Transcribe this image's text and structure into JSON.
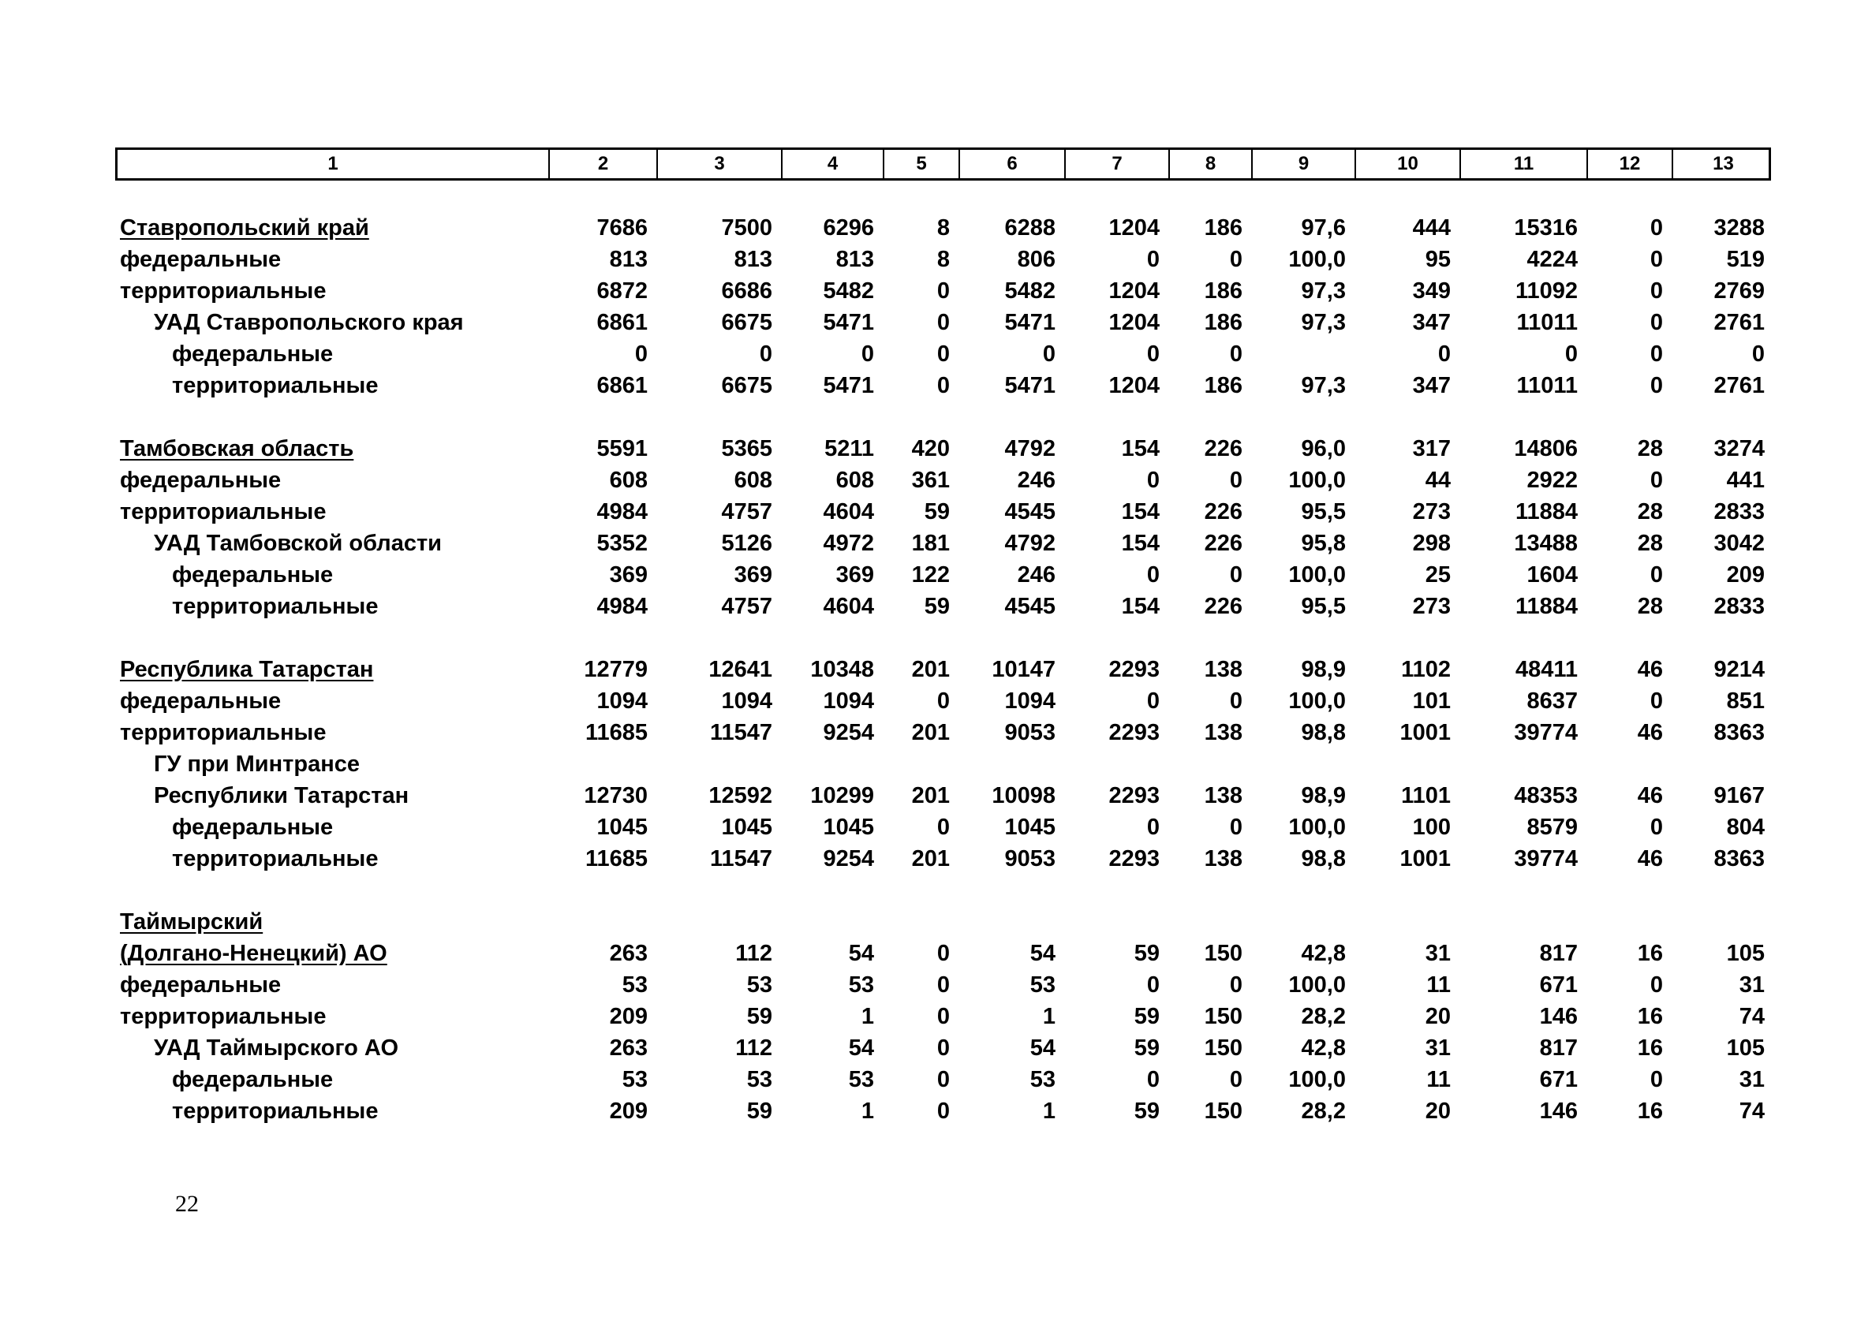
{
  "header": [
    "1",
    "2",
    "3",
    "4",
    "5",
    "6",
    "7",
    "8",
    "9",
    "10",
    "11",
    "12",
    "13"
  ],
  "sections": [
    {
      "rows": [
        {
          "label": "Ставропольский край",
          "indent": 0,
          "underline": true,
          "values": [
            "7686",
            "7500",
            "6296",
            "8",
            "6288",
            "1204",
            "186",
            "97,6",
            "444",
            "15316",
            "0",
            "3288"
          ]
        },
        {
          "label": "федеральные",
          "indent": 0,
          "values": [
            "813",
            "813",
            "813",
            "8",
            "806",
            "0",
            "0",
            "100,0",
            "95",
            "4224",
            "0",
            "519"
          ]
        },
        {
          "label": "территориальные",
          "indent": 0,
          "values": [
            "6872",
            "6686",
            "5482",
            "0",
            "5482",
            "1204",
            "186",
            "97,3",
            "349",
            "11092",
            "0",
            "2769"
          ]
        },
        {
          "label": "УАД Ставропольского края",
          "indent": 1,
          "values": [
            "6861",
            "6675",
            "5471",
            "0",
            "5471",
            "1204",
            "186",
            "97,3",
            "347",
            "11011",
            "0",
            "2761"
          ]
        },
        {
          "label": "федеральные",
          "indent": 2,
          "values": [
            "0",
            "0",
            "0",
            "0",
            "0",
            "0",
            "0",
            "",
            "0",
            "0",
            "0",
            "0"
          ]
        },
        {
          "label": "территориальные",
          "indent": 2,
          "values": [
            "6861",
            "6675",
            "5471",
            "0",
            "5471",
            "1204",
            "186",
            "97,3",
            "347",
            "11011",
            "0",
            "2761"
          ]
        }
      ]
    },
    {
      "rows": [
        {
          "label": "Тамбовская область",
          "indent": 0,
          "underline": true,
          "values": [
            "5591",
            "5365",
            "5211",
            "420",
            "4792",
            "154",
            "226",
            "96,0",
            "317",
            "14806",
            "28",
            "3274"
          ]
        },
        {
          "label": "федеральные",
          "indent": 0,
          "values": [
            "608",
            "608",
            "608",
            "361",
            "246",
            "0",
            "0",
            "100,0",
            "44",
            "2922",
            "0",
            "441"
          ]
        },
        {
          "label": "территориальные",
          "indent": 0,
          "values": [
            "4984",
            "4757",
            "4604",
            "59",
            "4545",
            "154",
            "226",
            "95,5",
            "273",
            "11884",
            "28",
            "2833"
          ]
        },
        {
          "label": "УАД Тамбовской области",
          "indent": 1,
          "values": [
            "5352",
            "5126",
            "4972",
            "181",
            "4792",
            "154",
            "226",
            "95,8",
            "298",
            "13488",
            "28",
            "3042"
          ]
        },
        {
          "label": "федеральные",
          "indent": 2,
          "values": [
            "369",
            "369",
            "369",
            "122",
            "246",
            "0",
            "0",
            "100,0",
            "25",
            "1604",
            "0",
            "209"
          ]
        },
        {
          "label": "территориальные",
          "indent": 2,
          "values": [
            "4984",
            "4757",
            "4604",
            "59",
            "4545",
            "154",
            "226",
            "95,5",
            "273",
            "11884",
            "28",
            "2833"
          ]
        }
      ]
    },
    {
      "rows": [
        {
          "label": "Республика Татарстан",
          "indent": 0,
          "underline": true,
          "values": [
            "12779",
            "12641",
            "10348",
            "201",
            "10147",
            "2293",
            "138",
            "98,9",
            "1102",
            "48411",
            "46",
            "9214"
          ]
        },
        {
          "label": "федеральные",
          "indent": 0,
          "values": [
            "1094",
            "1094",
            "1094",
            "0",
            "1094",
            "0",
            "0",
            "100,0",
            "101",
            "8637",
            "0",
            "851"
          ]
        },
        {
          "label": "территориальные",
          "indent": 0,
          "values": [
            "11685",
            "11547",
            "9254",
            "201",
            "9053",
            "2293",
            "138",
            "98,8",
            "1001",
            "39774",
            "46",
            "8363"
          ]
        },
        {
          "label": "ГУ при Минтрансе",
          "indent": 1,
          "values": []
        },
        {
          "label": "Республики Татарстан",
          "indent": 1,
          "values": [
            "12730",
            "12592",
            "10299",
            "201",
            "10098",
            "2293",
            "138",
            "98,9",
            "1101",
            "48353",
            "46",
            "9167"
          ]
        },
        {
          "label": "федеральные",
          "indent": 2,
          "values": [
            "1045",
            "1045",
            "1045",
            "0",
            "1045",
            "0",
            "0",
            "100,0",
            "100",
            "8579",
            "0",
            "804"
          ]
        },
        {
          "label": "территориальные",
          "indent": 2,
          "values": [
            "11685",
            "11547",
            "9254",
            "201",
            "9053",
            "2293",
            "138",
            "98,8",
            "1001",
            "39774",
            "46",
            "8363"
          ]
        }
      ]
    },
    {
      "rows": [
        {
          "label": "Таймырский",
          "indent": 0,
          "underline": true,
          "values": []
        },
        {
          "label": "(Долгано-Ненецкий) АО",
          "indent": 0,
          "underline": true,
          "values": [
            "263",
            "112",
            "54",
            "0",
            "54",
            "59",
            "150",
            "42,8",
            "31",
            "817",
            "16",
            "105"
          ]
        },
        {
          "label": "федеральные",
          "indent": 0,
          "values": [
            "53",
            "53",
            "53",
            "0",
            "53",
            "0",
            "0",
            "100,0",
            "11",
            "671",
            "0",
            "31"
          ]
        },
        {
          "label": "территориальные",
          "indent": 0,
          "values": [
            "209",
            "59",
            "1",
            "0",
            "1",
            "59",
            "150",
            "28,2",
            "20",
            "146",
            "16",
            "74"
          ]
        },
        {
          "label": "УАД Таймырского АО",
          "indent": 1,
          "values": [
            "263",
            "112",
            "54",
            "0",
            "54",
            "59",
            "150",
            "42,8",
            "31",
            "817",
            "16",
            "105"
          ]
        },
        {
          "label": "федеральные",
          "indent": 2,
          "values": [
            "53",
            "53",
            "53",
            "0",
            "53",
            "0",
            "0",
            "100,0",
            "11",
            "671",
            "0",
            "31"
          ]
        },
        {
          "label": "территориальные",
          "indent": 2,
          "values": [
            "209",
            "59",
            "1",
            "0",
            "1",
            "59",
            "150",
            "28,2",
            "20",
            "146",
            "16",
            "74"
          ]
        }
      ]
    }
  ],
  "page_number": "22"
}
